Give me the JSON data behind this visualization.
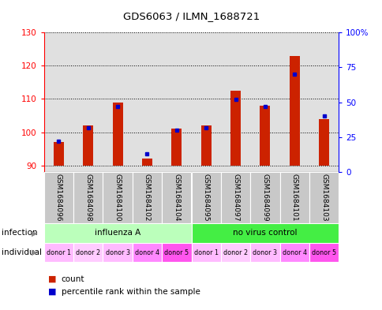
{
  "title": "GDS6063 / ILMN_1688721",
  "samples": [
    "GSM1684096",
    "GSM1684098",
    "GSM1684100",
    "GSM1684102",
    "GSM1684104",
    "GSM1684095",
    "GSM1684097",
    "GSM1684099",
    "GSM1684101",
    "GSM1684103"
  ],
  "red_values": [
    97.0,
    102.0,
    109.0,
    92.0,
    101.0,
    102.0,
    112.5,
    108.0,
    123.0,
    104.0
  ],
  "blue_values": [
    22,
    32,
    47,
    13,
    30,
    32,
    52,
    47,
    70,
    40
  ],
  "ylim_left": [
    88,
    130
  ],
  "ylim_right": [
    0,
    100
  ],
  "yticks_left": [
    90,
    100,
    110,
    120,
    130
  ],
  "yticks_right": [
    0,
    25,
    50,
    75,
    100
  ],
  "infection_groups": [
    {
      "label": "influenza A",
      "start": 0,
      "end": 5,
      "color": "#bbffbb"
    },
    {
      "label": "no virus control",
      "start": 5,
      "end": 10,
      "color": "#44ee44"
    }
  ],
  "individual_labels": [
    "donor 1",
    "donor 2",
    "donor 3",
    "donor 4",
    "donor 5",
    "donor 1",
    "donor 2",
    "donor 3",
    "donor 4",
    "donor 5"
  ],
  "ind_colors": [
    "#ffbbff",
    "#ffccff",
    "#ffbbff",
    "#ff88ff",
    "#ff55ee",
    "#ffbbff",
    "#ffccff",
    "#ffbbff",
    "#ff88ff",
    "#ff55ee"
  ],
  "bar_color": "#cc2200",
  "blue_color": "#0000cc",
  "bg_color": "#ffffff",
  "plot_bg": "#e0e0e0",
  "sample_bg": "#c8c8c8",
  "legend_red": "count",
  "legend_blue": "percentile rank within the sample",
  "infection_label": "infection",
  "individual_label": "individual",
  "bar_bottom": 90,
  "bar_width": 0.35
}
